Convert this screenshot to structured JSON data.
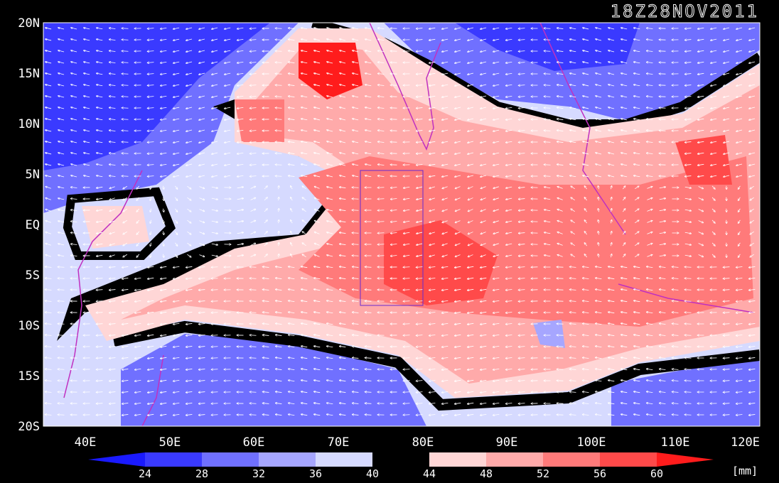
{
  "timestamp": "18Z28NOV2011",
  "units": "[mm]",
  "lat_labels": [
    "20N",
    "15N",
    "10N",
    "5N",
    "EQ",
    "5S",
    "10S",
    "15S",
    "20S"
  ],
  "lon_labels": [
    "40E",
    "50E",
    "60E",
    "70E",
    "80E",
    "90E",
    "100E",
    "110E",
    "120E"
  ],
  "colorbar": {
    "ticks": [
      "24",
      "28",
      "32",
      "36",
      "40",
      "44",
      "48",
      "52",
      "56",
      "60"
    ],
    "colors": [
      "#1a1aff",
      "#3a3aff",
      "#7070ff",
      "#a6a6ff",
      "#d6daff",
      "#000000",
      "#ffd6d6",
      "#ffaaaa",
      "#ff7a7a",
      "#ff4a4a",
      "#ff1c1c"
    ]
  },
  "map": {
    "lat_range": [
      "20S",
      "20N"
    ],
    "lon_range": [
      "35E",
      "120E"
    ],
    "background_low": "#5050ff",
    "background_high": "#ff6060"
  }
}
